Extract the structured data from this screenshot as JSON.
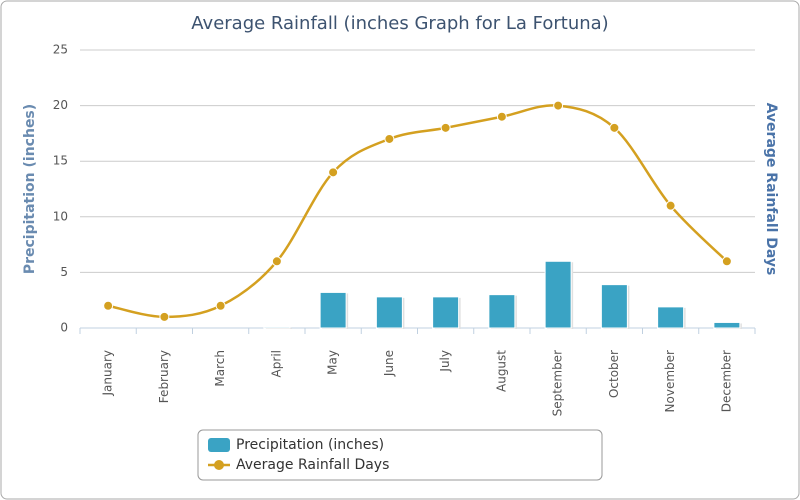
{
  "chart_data": {
    "type": "combo",
    "title": "Average Rainfall (inches Graph for La Fortuna)",
    "y_label": "Precipitation (inches)",
    "y2_label": "Average Rainfall Days",
    "categories": [
      "January",
      "February",
      "March",
      "April",
      "May",
      "June",
      "July",
      "August",
      "September",
      "October",
      "November",
      "December"
    ],
    "series": [
      {
        "name": "Precipitation (inches)",
        "type": "bar",
        "color": "#3aa3c4",
        "values": [
          0,
          0,
          0,
          0.1,
          3.2,
          2.8,
          2.8,
          3.0,
          6.0,
          3.9,
          1.9,
          0.5
        ]
      },
      {
        "name": "Average Rainfall Days",
        "type": "line",
        "color": "#d4a020",
        "values": [
          2,
          1,
          2,
          6,
          14,
          17,
          18,
          19,
          20,
          18,
          11,
          6
        ]
      }
    ],
    "ylim": [
      0,
      25
    ],
    "yticks": [
      0,
      5,
      10,
      15,
      20,
      25
    ],
    "grid": true
  }
}
